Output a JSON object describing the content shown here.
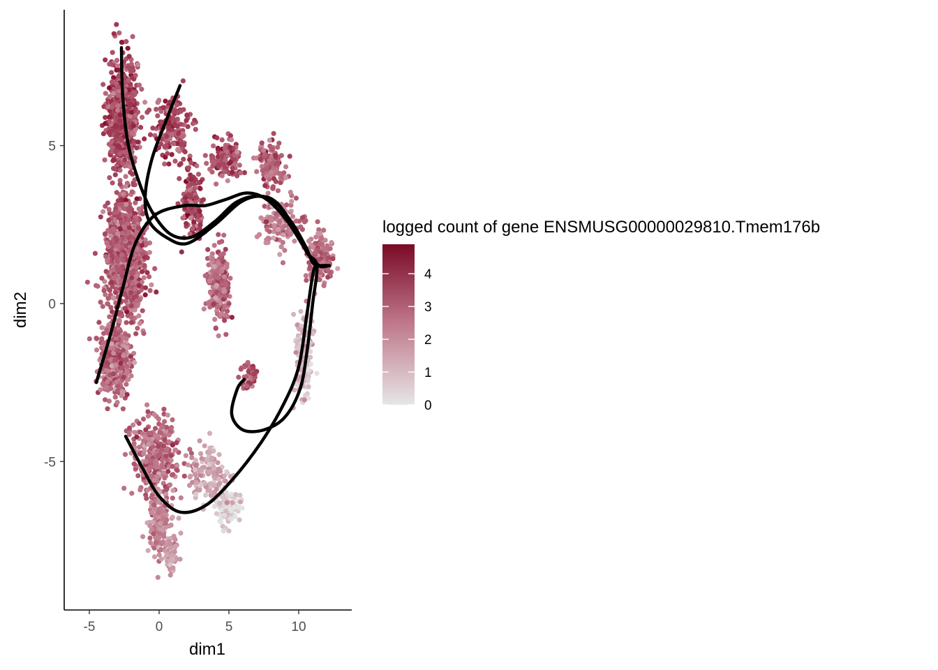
{
  "chart_data": {
    "type": "scatter",
    "title": "",
    "xlabel": "dim1",
    "ylabel": "dim2",
    "xlim": [
      -6.8,
      13.8
    ],
    "ylim": [
      -9.7,
      9.3
    ],
    "x_ticks": [
      -5,
      0,
      5,
      10
    ],
    "y_ticks": [
      -5,
      0,
      5
    ],
    "grid": false,
    "legend": {
      "title": "logged count of gene ENSMUSG00000029810.Tmem176b",
      "placement": "right",
      "type": "colorbar",
      "breaks": [
        0,
        1,
        2,
        3,
        4
      ],
      "range": [
        0,
        4.9
      ],
      "low_color": "#e6e6e6",
      "high_color": "#7a0a25"
    },
    "point_color_low": "#e3e3e3",
    "point_color_high": "#800020",
    "curve_color": "#000000",
    "clusters": [
      {
        "name": "upper-left-column",
        "center": [
          -2.6,
          6.0
        ],
        "spread": [
          0.95,
          1.6
        ],
        "count": 700,
        "level": 3.3
      },
      {
        "name": "left-column",
        "center": [
          -2.4,
          1.5
        ],
        "spread": [
          1.2,
          1.7
        ],
        "count": 1100,
        "level": 3.0
      },
      {
        "name": "left-lower-column",
        "center": [
          -3.2,
          -1.8
        ],
        "spread": [
          1.1,
          1.0
        ],
        "count": 350,
        "level": 2.8
      },
      {
        "name": "upper-arm",
        "center": [
          1.0,
          5.6
        ],
        "spread": [
          1.2,
          1.0
        ],
        "count": 160,
        "level": 3.4
      },
      {
        "name": "mid-column",
        "center": [
          2.4,
          3.2
        ],
        "spread": [
          0.7,
          1.0
        ],
        "count": 140,
        "level": 3.5
      },
      {
        "name": "upper-middle-blob",
        "center": [
          4.8,
          4.6
        ],
        "spread": [
          1.0,
          0.55
        ],
        "count": 130,
        "level": 3.4
      },
      {
        "name": "upper-right-blob",
        "center": [
          8.0,
          4.4
        ],
        "spread": [
          0.9,
          0.6
        ],
        "count": 130,
        "level": 3.0
      },
      {
        "name": "right-arc",
        "center": [
          8.6,
          2.6
        ],
        "spread": [
          1.3,
          0.7
        ],
        "count": 130,
        "level": 2.4
      },
      {
        "name": "far-right-blob",
        "center": [
          11.5,
          1.4
        ],
        "spread": [
          0.75,
          0.7
        ],
        "count": 180,
        "level": 2.8
      },
      {
        "name": "center-column",
        "center": [
          4.3,
          0.6
        ],
        "spread": [
          0.75,
          1.0
        ],
        "count": 220,
        "level": 2.7
      },
      {
        "name": "right-descending",
        "center": [
          10.4,
          -1.6
        ],
        "spread": [
          0.55,
          1.3
        ],
        "count": 160,
        "level": 1.0
      },
      {
        "name": "lower-center-blob",
        "center": [
          6.4,
          -2.3
        ],
        "spread": [
          0.55,
          0.4
        ],
        "count": 50,
        "level": 3.0
      },
      {
        "name": "lower-left-blob",
        "center": [
          -0.2,
          -4.9
        ],
        "spread": [
          1.6,
          1.1
        ],
        "count": 330,
        "level": 2.7
      },
      {
        "name": "lower-left-tail",
        "center": [
          0.0,
          -6.9
        ],
        "spread": [
          0.8,
          1.1
        ],
        "count": 170,
        "level": 2.0
      },
      {
        "name": "lower-center-flat",
        "center": [
          3.5,
          -5.4
        ],
        "spread": [
          1.4,
          0.8
        ],
        "count": 140,
        "level": 1.4
      },
      {
        "name": "lower-gray-blob",
        "center": [
          4.9,
          -6.5
        ],
        "spread": [
          0.8,
          0.5
        ],
        "count": 110,
        "level": 0.3
      },
      {
        "name": "bottom-tail",
        "center": [
          0.8,
          -8.1
        ],
        "spread": [
          0.35,
          0.55
        ],
        "count": 50,
        "level": 1.6
      }
    ],
    "trajectories": [
      {
        "name": "curve-1",
        "points": [
          [
            -2.7,
            8.1
          ],
          [
            -2.6,
            6.5
          ],
          [
            -2.2,
            5.0
          ],
          [
            -1.4,
            3.8
          ],
          [
            -0.5,
            2.9
          ],
          [
            0.8,
            2.2
          ],
          [
            2.3,
            2.1
          ],
          [
            4.0,
            2.6
          ],
          [
            5.5,
            3.2
          ],
          [
            7.0,
            3.4
          ],
          [
            8.3,
            3.2
          ],
          [
            9.6,
            2.5
          ],
          [
            10.5,
            1.8
          ],
          [
            11.0,
            1.3
          ],
          [
            11.5,
            1.2
          ],
          [
            12.2,
            1.2
          ]
        ]
      },
      {
        "name": "curve-2",
        "points": [
          [
            1.5,
            6.9
          ],
          [
            0.6,
            5.9
          ],
          [
            -0.5,
            4.6
          ],
          [
            -1.0,
            3.4
          ],
          [
            -0.7,
            2.6
          ],
          [
            0.5,
            2.1
          ],
          [
            2.0,
            1.9
          ],
          [
            4.0,
            2.5
          ],
          [
            5.8,
            3.2
          ],
          [
            7.2,
            3.4
          ],
          [
            8.4,
            3.2
          ],
          [
            9.7,
            2.4
          ],
          [
            10.6,
            1.6
          ],
          [
            11.3,
            1.2
          ],
          [
            11.0,
            0.0
          ],
          [
            10.6,
            -1.5
          ],
          [
            10.1,
            -2.7
          ],
          [
            9.0,
            -3.6
          ],
          [
            7.5,
            -4.0
          ],
          [
            6.0,
            -4.0
          ],
          [
            5.2,
            -3.5
          ],
          [
            5.6,
            -2.7
          ],
          [
            6.1,
            -2.4
          ]
        ]
      },
      {
        "name": "curve-3",
        "points": [
          [
            -4.5,
            -2.5
          ],
          [
            -3.5,
            -1.0
          ],
          [
            -2.6,
            0.5
          ],
          [
            -1.7,
            1.9
          ],
          [
            -0.3,
            2.8
          ],
          [
            1.8,
            3.1
          ],
          [
            3.3,
            3.1
          ],
          [
            4.8,
            3.3
          ],
          [
            6.3,
            3.5
          ],
          [
            7.7,
            3.3
          ],
          [
            9.2,
            2.6
          ],
          [
            10.5,
            1.7
          ],
          [
            11.4,
            1.2
          ],
          [
            12.2,
            1.2
          ]
        ]
      },
      {
        "name": "curve-4",
        "points": [
          [
            -2.4,
            -4.2
          ],
          [
            -1.2,
            -5.2
          ],
          [
            0.0,
            -6.1
          ],
          [
            1.5,
            -6.6
          ],
          [
            3.3,
            -6.4
          ],
          [
            5.2,
            -5.6
          ],
          [
            7.3,
            -4.4
          ],
          [
            8.9,
            -3.2
          ],
          [
            10.0,
            -2.0
          ],
          [
            10.6,
            -0.3
          ],
          [
            11.1,
            1.1
          ],
          [
            11.6,
            1.2
          ],
          [
            12.2,
            1.2
          ]
        ]
      }
    ]
  }
}
